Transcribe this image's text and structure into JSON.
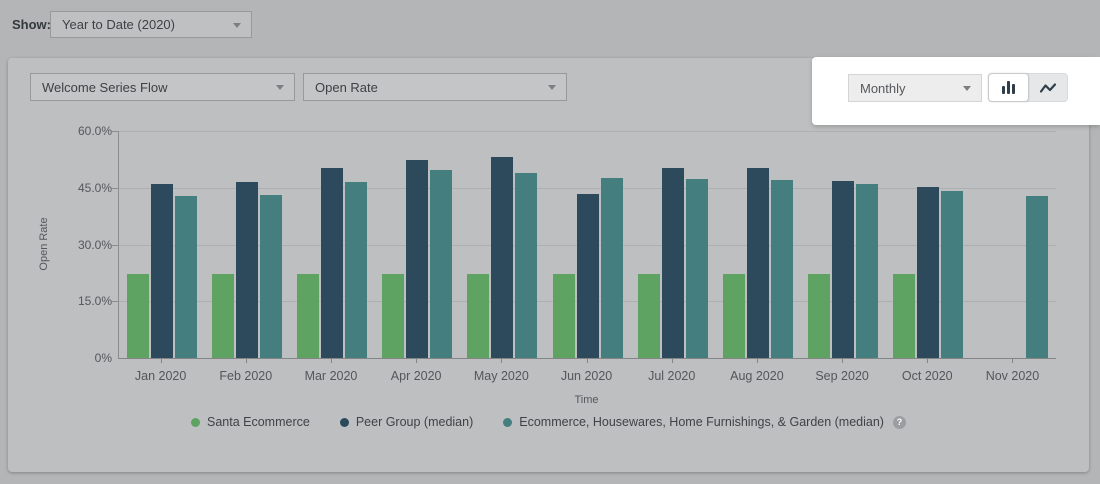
{
  "top_bar": {
    "show_label": "Show:",
    "period_dropdown": {
      "value": "Year to Date (2020)"
    }
  },
  "toolbar": {
    "flow_dropdown": {
      "value": "Welcome Series Flow"
    },
    "metric_dropdown": {
      "value": "Open Rate"
    },
    "interval_dropdown": {
      "value": "Monthly"
    },
    "chart_type_toggle": {
      "options": [
        {
          "icon": "bar-chart-icon",
          "active": true
        },
        {
          "icon": "line-chart-icon",
          "active": false
        }
      ]
    }
  },
  "colors": {
    "page_bg": "#b3b5b6",
    "panel_bg": "#bdbfc0",
    "spotlight_bg": "#ffffff",
    "grid_line": "#adafb0",
    "axis_line": "#8b8d8f",
    "chart_text": "#54585b"
  },
  "chart_data": {
    "type": "bar",
    "title": "",
    "xlabel": "Time",
    "ylabel": "Open Rate",
    "ylim": [
      0,
      60
    ],
    "grid": true,
    "legend_position": "bottom",
    "legend_help_glyph": "?",
    "yticks": [
      {
        "value": 0,
        "label": "0%"
      },
      {
        "value": 15,
        "label": "15.0%"
      },
      {
        "value": 30,
        "label": "30.0%"
      },
      {
        "value": 45,
        "label": "45.0%"
      },
      {
        "value": 60,
        "label": "60.0%"
      }
    ],
    "categories": [
      "Jan 2020",
      "Feb 2020",
      "Mar 2020",
      "Apr 2020",
      "May 2020",
      "Jun 2020",
      "Jul 2020",
      "Aug 2020",
      "Sep 2020",
      "Oct 2020",
      "Nov 2020"
    ],
    "series": [
      {
        "name": "Santa Ecommerce",
        "color": "#5ea362",
        "values": [
          22.2,
          22.2,
          22.2,
          22.2,
          22.2,
          22.2,
          22.2,
          22.2,
          22.2,
          22.2,
          null
        ]
      },
      {
        "name": "Peer Group (median)",
        "color": "#2d4a5c",
        "values": [
          46.0,
          46.4,
          50.2,
          52.4,
          53.2,
          43.3,
          50.1,
          50.3,
          46.9,
          45.2,
          null
        ]
      },
      {
        "name": "Ecommerce, Housewares, Home Furnishings, & Garden (median)",
        "color": "#447e7e",
        "values": [
          42.7,
          43.2,
          46.4,
          49.7,
          48.9,
          47.5,
          47.3,
          47.0,
          46.0,
          44.1,
          42.7
        ],
        "legend_help_icon": true
      }
    ]
  }
}
